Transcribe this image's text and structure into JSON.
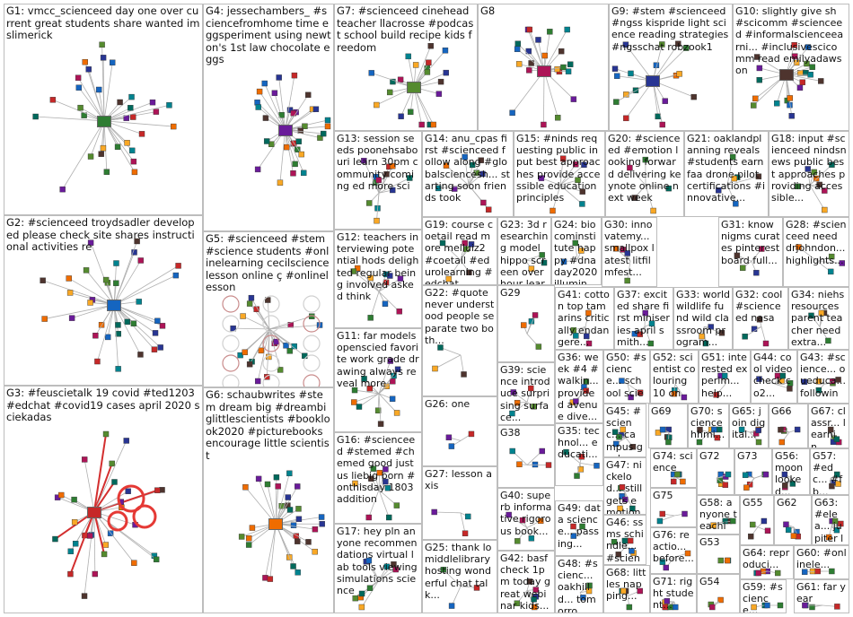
{
  "groups": [
    {
      "id": "G1",
      "label": "G1: vmcc_scienceed day one over current great students share wanted imslimerick"
    },
    {
      "id": "G2",
      "label": "G2: #scienceed troydsadler developed please check site shares instructional activities re"
    },
    {
      "id": "G3",
      "label": "G3: #feuscietalk 19 covid #ted1203 #edchat #covid19 cases april 2020 sciekadas"
    },
    {
      "id": "G4",
      "label": "G4: jessechambers_ #sciencefromhome time eggsperiment using newton's 1st law chocolate eggs"
    },
    {
      "id": "G5",
      "label": "G5: #scienceed #stem #science students #onlinelearning cecilscience lesson online ç #onlinelesson"
    },
    {
      "id": "G6",
      "label": "G6: schaubwrites #stem dream big #dreambiglittlescientists #booklook2020 #picturebooks encourage little scientist"
    },
    {
      "id": "G7",
      "label": "G7: #scienceed cinehead teacher llacrosse #podcast school build recipe kids freedom"
    },
    {
      "id": "G8",
      "label": "G8"
    },
    {
      "id": "G9",
      "label": "G9: #stem #scienceed #ngss kispride light science reading strategies #ngsschat robzook1"
    },
    {
      "id": "G10",
      "label": "G10: slightly give sh #scicomm #scienceed #informalscienceearni... #inclusivescicomm read emilyadawson"
    },
    {
      "id": "G11",
      "label": "G11: far models openscied favorite work grade drawing always reveal more"
    },
    {
      "id": "G12",
      "label": "G12: teachers interviewing potential hods delighted regular being involved asked think"
    },
    {
      "id": "G13",
      "label": "G13: session seeds poonehsabouri learn 30pm community coming ed more sci"
    },
    {
      "id": "G14",
      "label": "G14: anu_cpas first #scienceed follow along #globalsciencesh... starting soon friends took"
    },
    {
      "id": "G15",
      "label": "G15: #ninds requesting public input best approaches provide accessible education principles"
    },
    {
      "id": "G16",
      "label": "G16: #scienceed #stemed #chemed good justus liebig born #onthisday 1803 addition"
    },
    {
      "id": "G17",
      "label": "G17: hey pln anyone recommendations virtual lab tools viewing simulations science"
    },
    {
      "id": "G18",
      "label": "G18: input #scienceed nindsnews public best approaches providing accessible..."
    },
    {
      "id": "G19",
      "label": "G19: course coetail read more melluiz2 #coetail #edurolearning #edchat..."
    },
    {
      "id": "G20",
      "label": "G20: #scienceed #emotion looking forward delivering keynote online next week"
    },
    {
      "id": "G21",
      "label": "G21: oaklandplanning reveals #students earn faa drone pilot certifications #innovative..."
    },
    {
      "id": "G22",
      "label": "G22: #quote never understood people separate two both..."
    },
    {
      "id": "G23",
      "label": "G23: 3d researching model hippo screen over hour learn..."
    },
    {
      "id": "G24",
      "label": "G24: biocominstitute happy #dnaday2020 illumina..."
    },
    {
      "id": "G25",
      "label": "G25: thank lomiddlelibrary hosting wonderful chat talk..."
    },
    {
      "id": "G26",
      "label": "G26: one"
    },
    {
      "id": "G27",
      "label": "G27: lesson axis"
    },
    {
      "id": "G28",
      "label": "G28: #scienceed need drjohndon... highlights..."
    },
    {
      "id": "G29",
      "label": "G29"
    },
    {
      "id": "G30",
      "label": "G30: innovatemy... smallpox latest litfilmfest..."
    },
    {
      "id": "G31",
      "label": "G31: know nigms curates pinterest board full..."
    },
    {
      "id": "G32",
      "label": "G32: cool #scienceed nasa"
    },
    {
      "id": "G33",
      "label": "G33: world wildlife fund wild classroom program..."
    },
    {
      "id": "G34",
      "label": "G34: niehs resources parent teacher need extra..."
    },
    {
      "id": "G35",
      "label": "G35: technol... educati..."
    },
    {
      "id": "G36",
      "label": "G36: week #4 #walkin... provided avenue dive..."
    },
    {
      "id": "G37",
      "label": "G37: excited share first miniseries april smith..."
    },
    {
      "id": "G38",
      "label": "G38"
    },
    {
      "id": "G39",
      "label": "G39: science introduce surprising surface..."
    },
    {
      "id": "G40",
      "label": "G40: superb informative rigorous book..."
    },
    {
      "id": "G41",
      "label": "G41: cotton top tamarins critically endangere..."
    },
    {
      "id": "G42",
      "label": "G42: basf check 1pm today great webinar kids..."
    },
    {
      "id": "G43",
      "label": "G43: #science... oueduca... following..."
    },
    {
      "id": "G44",
      "label": "G44: cool video check co2..."
    },
    {
      "id": "G45",
      "label": "G45: #scienc... campus gecko..."
    },
    {
      "id": "G46",
      "label": "G46: ss ms schindle... #scienc..."
    },
    {
      "id": "G47",
      "label": "G47: nickelod... still gets emotional"
    },
    {
      "id": "G48",
      "label": "G48: #scienc... oakhilld... tomorro..."
    },
    {
      "id": "G49",
      "label": "G49: data science... passing..."
    },
    {
      "id": "G50",
      "label": "G50: #science... school science..."
    },
    {
      "id": "G51",
      "label": "G51: interested experim... help..."
    },
    {
      "id": "G52",
      "label": "G52: scientist colouring 10 one..."
    },
    {
      "id": "G53",
      "label": "G53"
    },
    {
      "id": "G54",
      "label": "G54"
    },
    {
      "id": "G55",
      "label": "G55"
    },
    {
      "id": "G56",
      "label": "G56: moon looked..."
    },
    {
      "id": "G57",
      "label": "G57: #edc... #fb..."
    },
    {
      "id": "G58",
      "label": "G58: anyone teachin..."
    },
    {
      "id": "G59",
      "label": "G59: #science..."
    },
    {
      "id": "G60",
      "label": "G60: #onlinele..."
    },
    {
      "id": "G61",
      "label": "G61: far year"
    },
    {
      "id": "G62",
      "label": "G62"
    },
    {
      "id": "G63",
      "label": "G63: #elea... jupiter large..."
    },
    {
      "id": "G64",
      "label": "G64: reproduci..."
    },
    {
      "id": "G65",
      "label": "G65: join digital..."
    },
    {
      "id": "G66",
      "label": "G66"
    },
    {
      "id": "G67",
      "label": "G67: classr... learnin..."
    },
    {
      "id": "G68",
      "label": "G68: littles napping..."
    },
    {
      "id": "G69",
      "label": "G69"
    },
    {
      "id": "G70",
      "label": "G70: science hhmi..."
    },
    {
      "id": "G71",
      "label": "G71: right student..."
    },
    {
      "id": "G72",
      "label": "G72"
    },
    {
      "id": "G73",
      "label": "G73"
    },
    {
      "id": "G74",
      "label": "G74: science"
    },
    {
      "id": "G75",
      "label": "G75"
    },
    {
      "id": "G76",
      "label": "G76: reactio... before..."
    }
  ]
}
